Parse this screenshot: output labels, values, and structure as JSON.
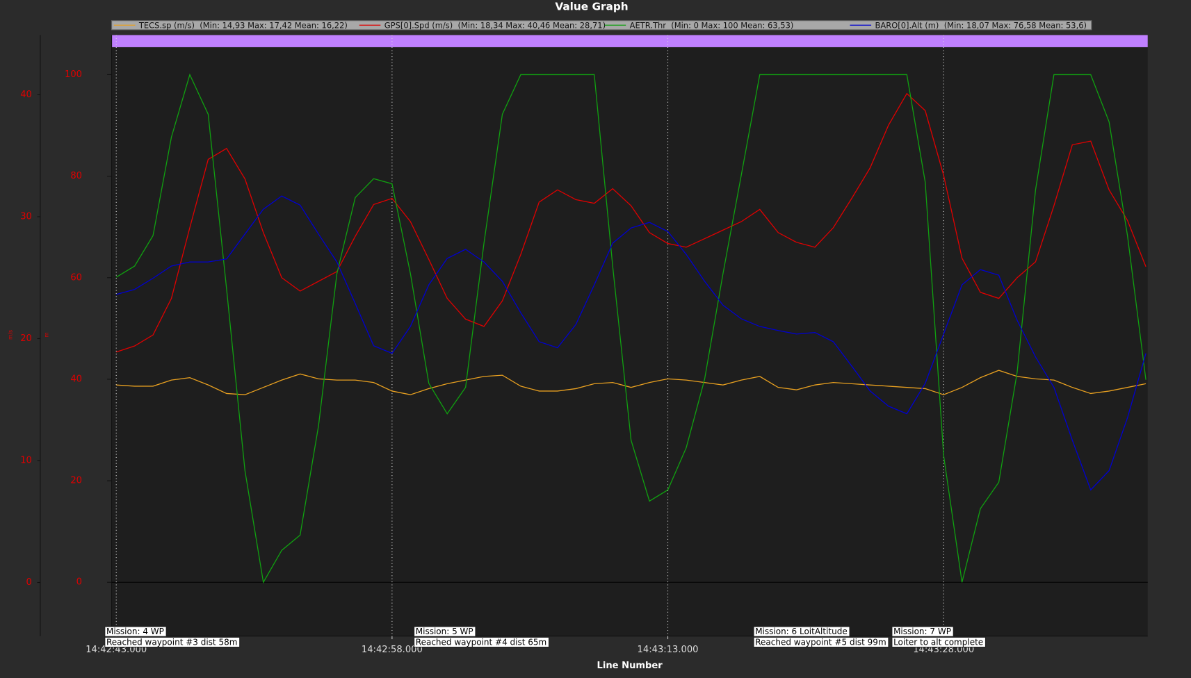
{
  "chart_data": {
    "type": "line",
    "title": "Value Graph",
    "x_label": "Line Number",
    "y_label": "m/s",
    "y2_label": "m",
    "x": [
      0,
      1,
      2,
      3,
      4,
      5,
      6,
      7,
      8,
      9,
      10,
      11,
      12,
      13,
      14,
      15,
      16,
      17,
      18,
      19,
      20,
      21,
      22,
      23,
      24,
      25,
      26,
      27,
      28,
      29,
      30,
      31,
      32,
      33,
      34,
      35,
      36,
      37,
      38,
      39,
      40,
      41,
      42,
      43,
      44,
      45,
      46,
      47,
      48,
      49,
      50,
      51,
      52,
      53,
      54,
      55,
      56
    ],
    "xlim": [
      -0.25,
      56.1
    ],
    "xticks": [
      {
        "value": 0,
        "label": "14:42:43.000"
      },
      {
        "value": 15,
        "label": "14:42:58.000"
      },
      {
        "value": 30,
        "label": "14:43:13.000"
      },
      {
        "value": 45,
        "label": "14:43:28.000"
      }
    ],
    "xgrid": true,
    "ylim": [
      -4.4,
      44.9
    ],
    "yticks": [
      0,
      10,
      20,
      30,
      40
    ],
    "y2lim": [
      -10.6,
      107.8
    ],
    "y2ticks": [
      0,
      20,
      40,
      60,
      80,
      100
    ],
    "series": [
      {
        "name": "TECS.sp (m/s)  (Min: 14,93 Max: 17,42 Mean: 16,22)",
        "color": "#e8a020",
        "values": [
          16.2,
          16.1,
          16.1,
          16.6,
          16.8,
          16.2,
          15.5,
          15.4,
          16.0,
          16.6,
          17.1,
          16.7,
          16.6,
          16.6,
          16.4,
          15.7,
          15.4,
          15.9,
          16.3,
          16.6,
          16.9,
          17.0,
          16.1,
          15.7,
          15.7,
          15.9,
          16.3,
          16.4,
          16.0,
          16.4,
          16.7,
          16.6,
          16.4,
          16.2,
          16.6,
          16.9,
          16.0,
          15.8,
          16.2,
          16.4,
          16.3,
          16.2,
          16.1,
          16.0,
          15.9,
          15.4,
          16.0,
          16.8,
          17.4,
          16.9,
          16.7,
          16.6,
          16.0,
          15.5,
          15.7,
          16.0,
          16.3
        ]
      },
      {
        "name": "GPS[0].Spd (m/s)  (Min: 18,34 Max: 40,46 Mean: 28,71)",
        "color": "#e00000",
        "values": [
          18.9,
          19.4,
          20.3,
          23.3,
          29.1,
          34.7,
          35.6,
          33.1,
          28.7,
          25.0,
          23.9,
          24.7,
          25.5,
          28.4,
          31.0,
          31.5,
          29.6,
          26.5,
          23.3,
          21.6,
          21.0,
          23.1,
          26.9,
          31.2,
          32.2,
          31.4,
          31.1,
          32.3,
          30.9,
          28.7,
          27.8,
          27.5,
          28.2,
          28.9,
          29.6,
          30.6,
          28.7,
          27.9,
          27.5,
          29.1,
          31.5,
          34.0,
          37.5,
          40.1,
          38.7,
          33.4,
          26.6,
          23.8,
          23.3,
          25.0,
          26.3,
          30.9,
          35.9,
          36.2,
          32.2,
          29.7,
          25.9
        ]
      },
      {
        "name": "AETR.Thr  (Min: 0 Max: 100 Mean: 63,53)",
        "color": "#10a010",
        "axis": "y2",
        "values": [
          60.1,
          62.3,
          68.3,
          87.7,
          100,
          92.2,
          57.8,
          22.0,
          0,
          6.3,
          9.3,
          30.8,
          60.8,
          75.8,
          79.5,
          78.5,
          60.8,
          39.2,
          33.2,
          38.4,
          66.8,
          92.2,
          100,
          100,
          100,
          100,
          100,
          62.3,
          28.0,
          16.0,
          18.2,
          26.5,
          40.0,
          60.8,
          80.3,
          100,
          100,
          100,
          100,
          100,
          100,
          100,
          100,
          100,
          78.8,
          25.0,
          0,
          14.5,
          19.7,
          41.4,
          77.3,
          100,
          100,
          100,
          90.7,
          68.3,
          39.9
        ]
      },
      {
        "name": "BARO[0].Alt (m)  (Min: 18,07 Max: 76,58 Mean: 53,6)",
        "color": "#0000d0",
        "axis": "y2",
        "values": [
          56.7,
          57.7,
          59.9,
          62.3,
          63.1,
          63.1,
          63.7,
          68.6,
          73.5,
          76.1,
          74.3,
          68.6,
          63.1,
          54.9,
          46.6,
          45.1,
          50.4,
          58.6,
          63.8,
          65.6,
          63.1,
          59.3,
          53.1,
          47.4,
          46.2,
          50.8,
          58.6,
          66.8,
          69.8,
          70.9,
          69.1,
          64.6,
          59.3,
          54.6,
          51.9,
          50.4,
          49.6,
          48.9,
          49.2,
          47.4,
          42.6,
          37.7,
          34.7,
          33.2,
          39.2,
          48.9,
          58.6,
          61.6,
          60.5,
          51.6,
          44.4,
          38.4,
          28.0,
          18.2,
          22.0,
          32.4,
          45.1
        ]
      }
    ],
    "annotations": [
      {
        "x": -0.62,
        "lines": [
          "Mission: 4 WP",
          "Reached waypoint #3 dist 58m"
        ]
      },
      {
        "x": 16.2,
        "lines": [
          "Mission: 5 WP",
          "Reached waypoint #4 dist 65m"
        ]
      },
      {
        "x": 34.67,
        "lines": [
          "Mission: 6 LoitAltitude",
          "Reached waypoint #5 dist 99m"
        ]
      },
      {
        "x": 42.19,
        "lines": [
          "Mission: 7 WP",
          "Loiter to alt complete"
        ]
      }
    ]
  }
}
